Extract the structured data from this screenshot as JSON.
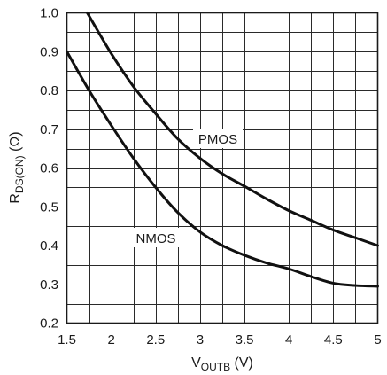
{
  "chart_data": {
    "type": "line",
    "x_ticks": [
      "1.5",
      "2",
      "2.5",
      "3",
      "3.5",
      "4",
      "4.5",
      "5"
    ],
    "y_ticks": [
      "0.2",
      "0.3",
      "0.4",
      "0.5",
      "0.6",
      "0.7",
      "0.8",
      "0.9",
      "1.0"
    ],
    "xlim": [
      1.5,
      5
    ],
    "ylim": [
      0.2,
      1.0
    ],
    "x_minor_step": 0.25,
    "y_minor_step": 0.05,
    "grid": true,
    "xlabel": {
      "main": "V",
      "sub": "OUTB",
      "unit": " (V)"
    },
    "ylabel": {
      "main": "R",
      "sub": "DS(ON)",
      "unit": " (Ω)"
    },
    "series": [
      {
        "name": "PMOS",
        "x": [
          1.73,
          2.0,
          2.25,
          2.5,
          2.75,
          3.0,
          3.25,
          3.5,
          3.75,
          4.0,
          4.25,
          4.5,
          4.75,
          5.0
        ],
        "y": [
          1.0,
          0.895,
          0.81,
          0.74,
          0.675,
          0.625,
          0.585,
          0.553,
          0.52,
          0.49,
          0.465,
          0.44,
          0.42,
          0.4
        ]
      },
      {
        "name": "NMOS",
        "x": [
          1.5,
          1.75,
          2.0,
          2.25,
          2.5,
          2.75,
          3.0,
          3.25,
          3.5,
          3.75,
          4.0,
          4.25,
          4.5,
          4.75,
          5.0
        ],
        "y": [
          0.9,
          0.8,
          0.71,
          0.625,
          0.55,
          0.485,
          0.435,
          0.4,
          0.375,
          0.355,
          0.34,
          0.32,
          0.303,
          0.297,
          0.295
        ]
      }
    ]
  }
}
